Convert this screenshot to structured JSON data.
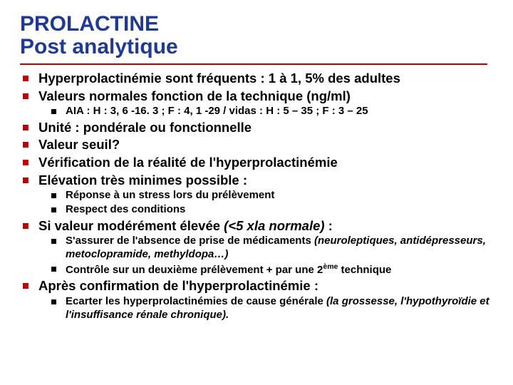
{
  "colors": {
    "title": "#1f3a93",
    "rule": "#c00000",
    "bullet_lvl1": "#c00000",
    "bullet_lvl2": "#000000",
    "text": "#000000",
    "background": "#ffffff"
  },
  "typography": {
    "title_family": "Arial Black",
    "title_size_pt": 22,
    "title_weight": 900,
    "lvl1_size_pt": 14,
    "lvl1_weight": 700,
    "lvl2_size_pt": 11,
    "lvl2_weight": 700
  },
  "title": {
    "line1": "PROLACTINE",
    "line2": "Post analytique"
  },
  "b1": "Hyperprolactinémie sont fréquents : 1 à 1, 5% des adultes",
  "b2": "Valeurs normales fonction de la technique (ng/ml)",
  "b2_1": "AIA : H : 3, 6 -16. 3 ; F : 4, 1 -29 / vidas : H : 5 – 35 ; F : 3 – 25",
  "b3": "Unité : pondérale ou fonctionnelle",
  "b4": "Valeur seuil?",
  "b5": "Vérification de la réalité de l'hyperprolactinémie",
  "b6": "Elévation très minimes possible :",
  "b6_1": "Réponse à un stress lors du prélèvement",
  "b6_2": "Respect des conditions",
  "b7_pre": "Si valeur modérément élevée ",
  "b7_it": "(<5 xla normale)",
  "b7_post": " :",
  "b7_1_pre": "S'assurer de l'absence de prise de médicaments ",
  "b7_1_it": "(neuroleptiques, antidépresseurs, metoclopramide, methyldopa…)",
  "b7_2_pre": "Contrôle sur un deuxième prélèvement + par une 2",
  "b7_2_sup": "ème",
  "b7_2_post": " technique",
  "b8": "Après confirmation de l'hyperprolactinémie :",
  "b8_1_pre": "Ecarter les hyperprolactinémies de cause générale ",
  "b8_1_it": "(la grossesse, l'hypothyroïdie et l'insuffisance rénale chronique)."
}
